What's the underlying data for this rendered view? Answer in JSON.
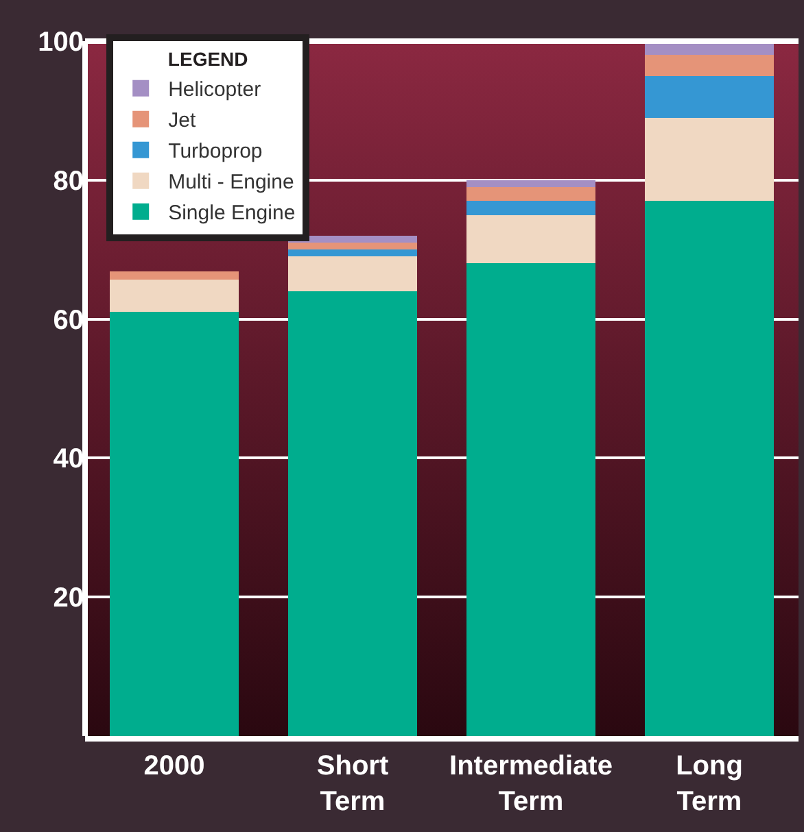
{
  "chart_data": {
    "type": "bar",
    "stacked": true,
    "legend_title": "LEGEND",
    "legend": "top left",
    "categories": [
      "2000",
      "Short Term",
      "Intermediate Term",
      "Long Term"
    ],
    "series": [
      {
        "name": "Single Engine",
        "color": "#00ad8e",
        "values": [
          61,
          64,
          68,
          77
        ]
      },
      {
        "name": "Multi - Engine",
        "color": "#f0d8c2",
        "values": [
          4.7,
          5,
          7,
          12
        ]
      },
      {
        "name": "Turboprop",
        "color": "#3597d3",
        "values": [
          0,
          1,
          2,
          6
        ]
      },
      {
        "name": "Jet",
        "color": "#e59478",
        "values": [
          1.2,
          1,
          2,
          3
        ]
      },
      {
        "name": "Helicopter",
        "color": "#a48fc4",
        "values": [
          0,
          1,
          1,
          2
        ]
      }
    ],
    "ylim": [
      0,
      100
    ],
    "yticks": [
      20,
      40,
      60,
      80,
      100
    ],
    "grid": "y"
  }
}
